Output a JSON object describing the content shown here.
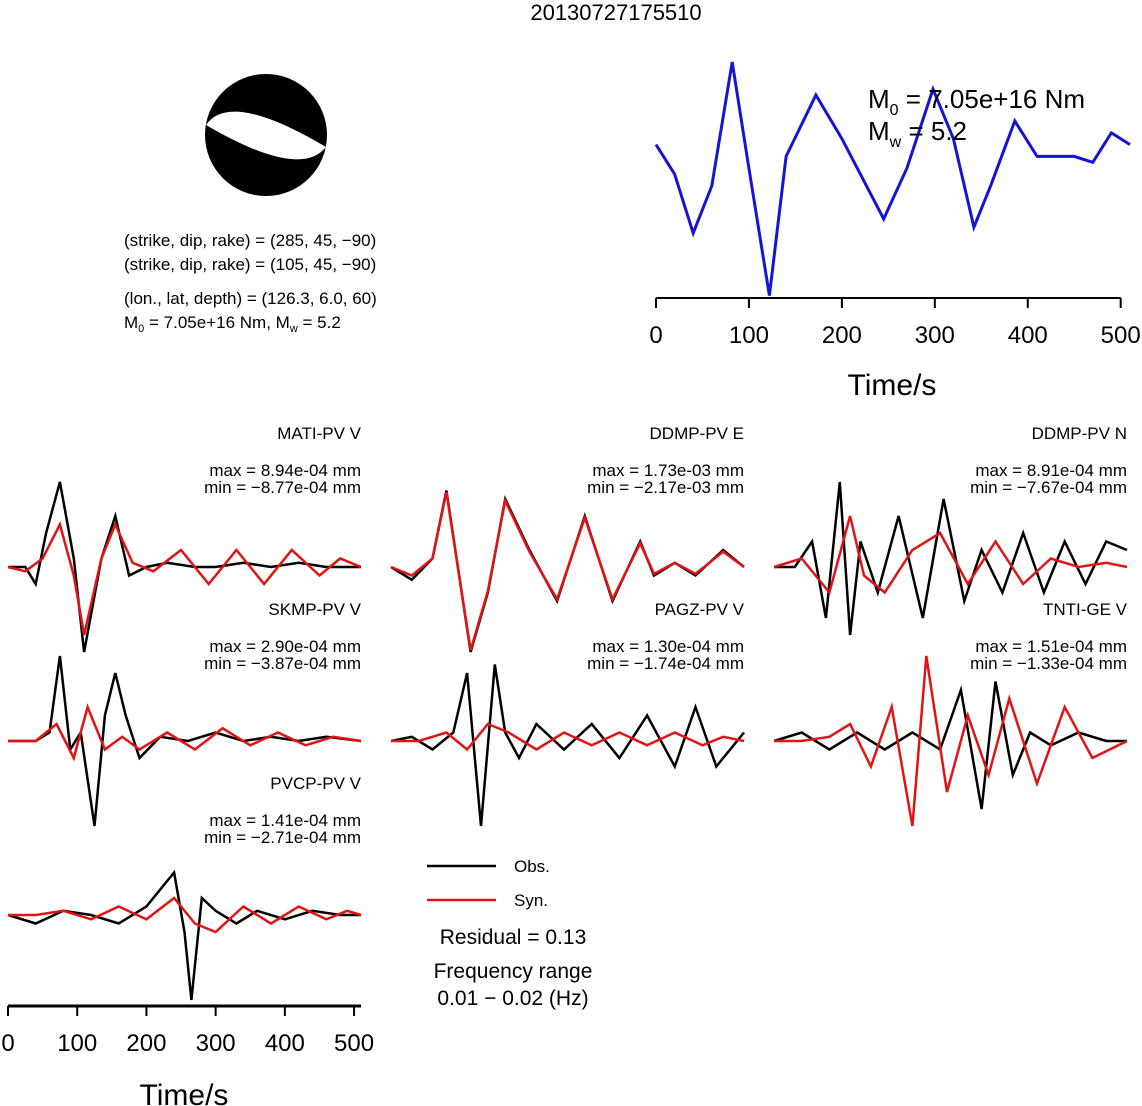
{
  "event_id": "20130727175510",
  "mechanism": {
    "nodal_plane_1": "(strike, dip, rake) = (285, 45, −90)",
    "nodal_plane_2": "(strike, dip, rake) = (105, 45, −90)",
    "location": "(lon., lat, depth) = (126.3, 6.0, 60)",
    "moment_prefix": "M",
    "moment_sub": "0",
    "moment_text": " = 7.05e+16 Nm, M",
    "mw_sub": "w",
    "mw_text": " = 5.2"
  },
  "stf_annot": {
    "m0_prefix": "M",
    "m0_sub": "0",
    "m0_text": " = 7.05e+16 Nm",
    "mw_prefix": "M",
    "mw_sub": "w",
    "mw_text": " = 5.2"
  },
  "legend": {
    "obs": "Obs.",
    "syn": "Syn.",
    "residual": "Residual = 0.13",
    "freq_label": "Frequency range",
    "freq_value": "0.01 − 0.02 (Hz)"
  },
  "colors": {
    "obs": "#000000",
    "syn": "#e01414",
    "stf": "#1414d2"
  },
  "chart_data": [
    {
      "type": "line",
      "name": "source-time-function",
      "xlabel": "Time/s",
      "xlim": [
        0,
        510
      ],
      "xticks": [
        0,
        100,
        200,
        300,
        400,
        500
      ],
      "series": [
        {
          "x": [
            0,
            20,
            40,
            60,
            82,
            100,
            122,
            140,
            172,
            200,
            245,
            270,
            298,
            320,
            342,
            360,
            386,
            410,
            425,
            450,
            470,
            490,
            510
          ],
          "y": [
            0.3,
            0.05,
            -0.45,
            -0.05,
            1.0,
            0.1,
            -0.98,
            0.2,
            0.72,
            0.35,
            -0.33,
            0.1,
            0.77,
            0.35,
            -0.4,
            -0.05,
            0.5,
            0.2,
            0.2,
            0.2,
            0.15,
            0.4,
            0.3
          ]
        }
      ]
    },
    {
      "type": "line",
      "name": "waveform-fits",
      "xlabel": "Time/s",
      "xlim": [
        0,
        510
      ],
      "xticks": [
        0,
        100,
        200,
        300,
        400,
        500
      ],
      "stations": [
        {
          "label": "MATI-PV V",
          "max": "max = 8.94e-04 mm",
          "min": "min = −8.77e-04 mm",
          "col": 0,
          "row": 0,
          "obs": {
            "x": [
              0,
              25,
              40,
              55,
              75,
              95,
              110,
              135,
              155,
              175,
              200,
              230,
              270,
              300,
              340,
              380,
              420,
              460,
              510
            ],
            "y": [
              0.0,
              0.0,
              -0.2,
              0.4,
              1.0,
              0.1,
              -1.0,
              0.1,
              0.6,
              -0.1,
              0.0,
              0.05,
              0.0,
              0.0,
              0.05,
              0.0,
              0.05,
              0.0,
              0.0
            ]
          },
          "syn": {
            "x": [
              0,
              25,
              50,
              75,
              95,
              110,
              135,
              155,
              180,
              210,
              250,
              290,
              330,
              370,
              410,
              450,
              480,
              510
            ],
            "y": [
              0.0,
              -0.05,
              0.1,
              0.5,
              -0.1,
              -0.8,
              0.1,
              0.5,
              0.05,
              -0.05,
              0.2,
              -0.2,
              0.2,
              -0.2,
              0.2,
              -0.1,
              0.1,
              0.0
            ]
          }
        },
        {
          "label": "DDMP-PV E",
          "max": "max = 1.73e-03 mm",
          "min": "min = −2.17e-03 mm",
          "col": 1,
          "row": 0,
          "obs": {
            "x": [
              0,
              30,
              60,
              80,
              115,
              140,
              165,
              200,
              240,
              280,
              320,
              360,
              380,
              410,
              440,
              480,
              510
            ],
            "y": [
              0.0,
              -0.15,
              0.1,
              0.9,
              -1.0,
              -0.3,
              0.8,
              0.2,
              -0.4,
              0.6,
              -0.4,
              0.3,
              -0.1,
              0.05,
              -0.1,
              0.2,
              0.0
            ]
          },
          "syn": {
            "x": [
              0,
              30,
              60,
              80,
              115,
              140,
              165,
              200,
              240,
              280,
              320,
              360,
              380,
              410,
              440,
              480,
              510
            ],
            "y": [
              0.0,
              -0.1,
              0.1,
              0.88,
              -0.98,
              -0.28,
              0.78,
              0.18,
              -0.38,
              0.58,
              -0.38,
              0.28,
              -0.08,
              0.05,
              -0.08,
              0.18,
              0.0
            ]
          }
        },
        {
          "label": "DDMP-PV N",
          "max": "max = 8.91e-04 mm",
          "min": "min = −7.67e-04 mm",
          "col": 2,
          "row": 0,
          "obs": {
            "x": [
              0,
              30,
              55,
              75,
              95,
              110,
              125,
              150,
              180,
              215,
              245,
              275,
              300,
              330,
              360,
              390,
              420,
              450,
              480,
              510
            ],
            "y": [
              0.0,
              0.0,
              0.3,
              -0.6,
              1.0,
              -0.8,
              0.3,
              -0.3,
              0.6,
              -0.6,
              0.8,
              -0.4,
              0.2,
              -0.3,
              0.4,
              -0.3,
              0.3,
              -0.2,
              0.3,
              0.2
            ]
          },
          "syn": {
            "x": [
              0,
              40,
              80,
              110,
              130,
              160,
              200,
              240,
              280,
              320,
              360,
              400,
              440,
              480,
              510
            ],
            "y": [
              0.0,
              0.1,
              -0.3,
              0.6,
              -0.1,
              -0.3,
              0.2,
              0.4,
              -0.2,
              0.3,
              -0.2,
              0.1,
              0.0,
              0.05,
              0.0
            ]
          }
        },
        {
          "label": "SKMP-PV V",
          "max": "max = 2.90e-04 mm",
          "min": "min = −3.87e-04 mm",
          "col": 0,
          "row": 1,
          "obs": {
            "x": [
              0,
              40,
              60,
              75,
              90,
              105,
              125,
              140,
              155,
              170,
              190,
              220,
              260,
              300,
              340,
              380,
              420,
              460,
              510
            ],
            "y": [
              0.0,
              0.0,
              0.1,
              1.0,
              -0.1,
              0.1,
              -1.0,
              0.3,
              0.8,
              0.3,
              -0.2,
              0.05,
              0.0,
              0.1,
              0.0,
              0.05,
              0.0,
              0.05,
              0.0
            ]
          },
          "syn": {
            "x": [
              0,
              40,
              70,
              95,
              115,
              140,
              165,
              190,
              230,
              270,
              310,
              350,
              390,
              430,
              470,
              510
            ],
            "y": [
              0.0,
              0.0,
              0.2,
              -0.2,
              0.4,
              -0.1,
              0.05,
              -0.1,
              0.1,
              -0.1,
              0.15,
              -0.05,
              0.1,
              -0.05,
              0.05,
              0.0
            ]
          }
        },
        {
          "label": "PAGZ-PV V",
          "max": "max = 1.30e-04 mm",
          "min": "min = −1.74e-04 mm",
          "col": 1,
          "row": 1,
          "obs": {
            "x": [
              0,
              30,
              60,
              90,
              110,
              130,
              150,
              165,
              185,
              210,
              250,
              290,
              330,
              370,
              410,
              440,
              470,
              510
            ],
            "y": [
              0.0,
              0.05,
              -0.1,
              0.1,
              0.8,
              -1.0,
              0.9,
              0.1,
              -0.2,
              0.2,
              -0.1,
              0.2,
              -0.2,
              0.3,
              -0.3,
              0.4,
              -0.3,
              0.1
            ]
          },
          "syn": {
            "x": [
              0,
              40,
              80,
              110,
              140,
              170,
              210,
              250,
              290,
              330,
              370,
              410,
              450,
              480,
              510
            ],
            "y": [
              0.0,
              0.0,
              0.1,
              -0.1,
              0.2,
              0.1,
              -0.1,
              0.1,
              -0.05,
              0.1,
              -0.05,
              0.1,
              -0.05,
              0.05,
              0.0
            ]
          }
        },
        {
          "label": "TNTI-GE V",
          "max": "max = 1.51e-04 mm",
          "min": "min = −1.33e-04 mm",
          "col": 2,
          "row": 1,
          "obs": {
            "x": [
              0,
              40,
              80,
              120,
              160,
              200,
              240,
              270,
              300,
              320,
              345,
              370,
              400,
              440,
              480,
              510
            ],
            "y": [
              0.0,
              0.1,
              -0.1,
              0.1,
              -0.1,
              0.1,
              -0.1,
              0.6,
              -0.8,
              0.7,
              -0.4,
              0.1,
              -0.05,
              0.1,
              0.0,
              0.0
            ]
          },
          "syn": {
            "x": [
              0,
              40,
              80,
              110,
              140,
              170,
              200,
              220,
              250,
              280,
              310,
              340,
              380,
              420,
              460,
              510
            ],
            "y": [
              0.0,
              0.0,
              0.05,
              0.2,
              -0.3,
              0.4,
              -1.0,
              1.0,
              -0.6,
              0.3,
              -0.4,
              0.5,
              -0.5,
              0.4,
              -0.2,
              0.0
            ]
          }
        },
        {
          "label": "PVCP-PV V",
          "max": "max = 1.41e-04 mm",
          "min": "min = −2.71e-04 mm",
          "col": 0,
          "row": 2,
          "obs": {
            "x": [
              0,
              40,
              80,
              120,
              160,
              200,
              240,
              255,
              265,
              280,
              300,
              330,
              360,
              400,
              440,
              480,
              510
            ],
            "y": [
              0.0,
              -0.1,
              0.05,
              0.0,
              -0.1,
              0.1,
              0.5,
              -0.2,
              -1.0,
              0.2,
              0.05,
              -0.1,
              0.05,
              -0.05,
              0.05,
              0.0,
              0.0
            ]
          },
          "syn": {
            "x": [
              0,
              40,
              80,
              120,
              160,
              200,
              240,
              270,
              300,
              340,
              380,
              420,
              460,
              490,
              510
            ],
            "y": [
              0.0,
              0.0,
              0.05,
              -0.05,
              0.1,
              -0.05,
              0.2,
              -0.1,
              -0.2,
              0.1,
              -0.1,
              0.1,
              -0.05,
              0.05,
              0.0
            ]
          }
        }
      ]
    }
  ]
}
